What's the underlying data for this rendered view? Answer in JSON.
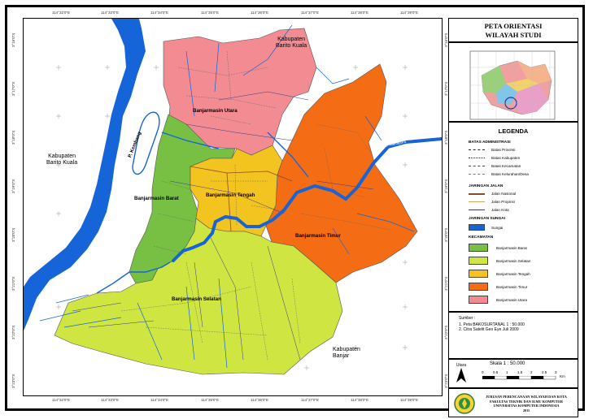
{
  "map": {
    "places": {
      "barito_kuala_ne": "Kabupaten\nBarito Kuala",
      "barito_kuala_w": "Kabupaten\nBarito Kuala",
      "banjar": "Kabupaten\nBanjar",
      "p_kembang": "P. Kembang",
      "sungai_barito": "Sungai Barito",
      "s_martapura": "S. Martapura",
      "bjm_utara": "Banjarmasin Utara",
      "bjm_barat": "Banjarmasin Barat",
      "bjm_tengah": "Banjarmasin Tengah",
      "bjm_timur": "Banjarmasin Timur",
      "bjm_selatan": "Banjarmasin Selatan"
    },
    "lon_labels": [
      "114°32'0\"E",
      "114°33'0\"E",
      "114°34'0\"E",
      "114°35'0\"E",
      "114°36'0\"E",
      "114°37'0\"E",
      "114°38'0\"E",
      "114°39'0\"E"
    ],
    "lat_labels": [
      "3°16'0\"S",
      "3°17'0\"S",
      "3°18'0\"S",
      "3°19'0\"S",
      "3°20'0\"S",
      "3°21'0\"S",
      "3°22'0\"S",
      "3°23'0\"S"
    ]
  },
  "title": {
    "line1": "PETA ORIENTASI",
    "line2": "WILAYAH STUDI"
  },
  "legend": {
    "heading": "LEGENDA",
    "batas_title": "BATAS ADMINISTRASI",
    "batas": [
      "Batas Provinsi",
      "Batas Kabupaten",
      "Batas Kecamatan",
      "Batas Kelurahan/Desa"
    ],
    "jalan_title": "JARINGAN JALAN",
    "jalan": [
      "Jalan Nasional",
      "Jalan Propinsi",
      "Jalan Kota"
    ],
    "sungai_title": "JARINGAN SUNGAI",
    "sungai": "Sungai",
    "kecamatan_title": "KECAMATAN",
    "kecamatan": [
      {
        "label": "Banjarmasin Barat",
        "color": "#77c043"
      },
      {
        "label": "Banjarmasin Selatan",
        "color": "#cfe642"
      },
      {
        "label": "Banjarmasin Tengah",
        "color": "#f3c31f"
      },
      {
        "label": "Banjarmasin Timur",
        "color": "#f46c14"
      },
      {
        "label": "Banjarmasin Utara",
        "color": "#f28b92"
      }
    ]
  },
  "source": {
    "heading": "Sumber :",
    "items": [
      "1. Peta BAKOSURTANAL 1 : 50.000",
      "2. Citra Satelit Geo Eye Juli 2009"
    ]
  },
  "scale": {
    "north": "Utara",
    "text": "Skala 1 : 50.000",
    "ticks": [
      "0",
      "0.5",
      "1",
      "1.5",
      "2",
      "2.5",
      "3"
    ],
    "unit": "Km"
  },
  "institution": {
    "line1": "JURUSAN PERENCANAAN WILAYAH DAN KOTA",
    "line2": "FAKULTAS TEKNIK DAN ILMU KOMPUTER",
    "line3": "UNIVERSITAS KOMPUTER INDONESIA",
    "year": "2011"
  },
  "colors": {
    "barat": "#77c043",
    "selatan": "#cfe642",
    "tengah": "#f3c31f",
    "timur": "#f46c14",
    "utara": "#f28b92",
    "river": "#1565d8"
  }
}
